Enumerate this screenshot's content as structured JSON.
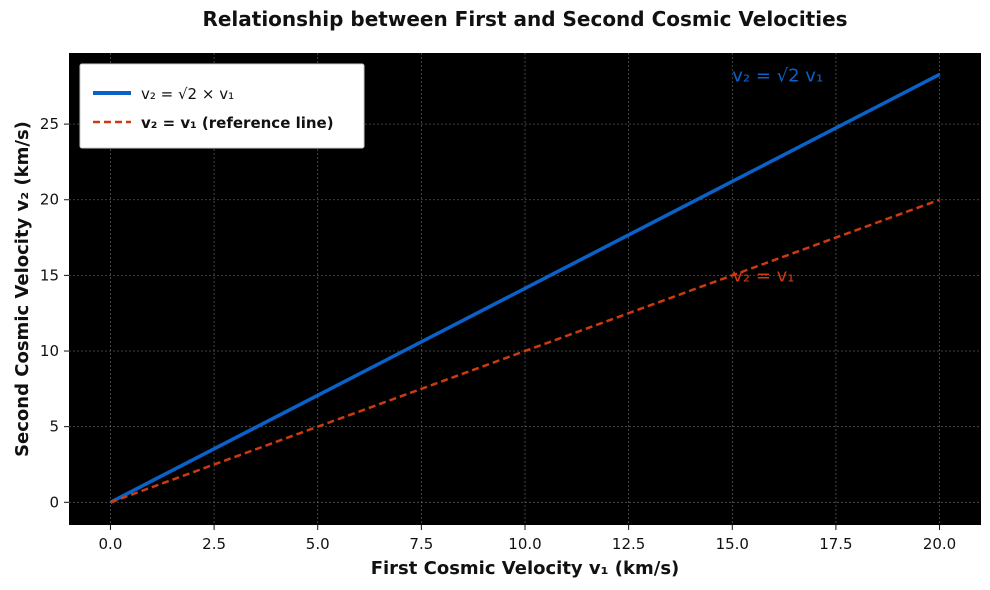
{
  "chart_data": {
    "type": "line",
    "title": "Relationship between First and Second Cosmic Velocities",
    "xlabel": "First Cosmic Velocity v₁ (km/s)",
    "ylabel": "Second Cosmic Velocity v₂ (km/s)",
    "xlim": [
      -1,
      21
    ],
    "ylim": [
      -1.5,
      29.7
    ],
    "xticks": [
      0.0,
      2.5,
      5.0,
      7.5,
      10.0,
      12.5,
      15.0,
      17.5,
      20.0
    ],
    "xtick_labels": [
      "0.0",
      "2.5",
      "5.0",
      "7.5",
      "10.0",
      "12.5",
      "15.0",
      "17.5",
      "20.0"
    ],
    "yticks": [
      0,
      5,
      10,
      15,
      20,
      25
    ],
    "ytick_labels": [
      "0",
      "5",
      "10",
      "15",
      "20",
      "25"
    ],
    "grid": true,
    "background": "#000000",
    "legend_position": "top-left",
    "series": [
      {
        "name": "v₂ = √2 × v₁",
        "style": "solid",
        "color": "#0a62c9",
        "x": [
          0,
          20
        ],
        "y": [
          0,
          28.28
        ]
      },
      {
        "name": "v₂ = v₁ (reference line)",
        "style": "dashed",
        "color": "#cc3a12",
        "x": [
          0,
          20
        ],
        "y": [
          0,
          20
        ]
      }
    ],
    "annotations": [
      {
        "text": "v₂ = √2 v₁",
        "x": 15,
        "y": 28.2,
        "color": "#0a62c9"
      },
      {
        "text": "v₂ = v₁",
        "x": 15,
        "y": 15,
        "color": "#cc3a12"
      }
    ]
  }
}
